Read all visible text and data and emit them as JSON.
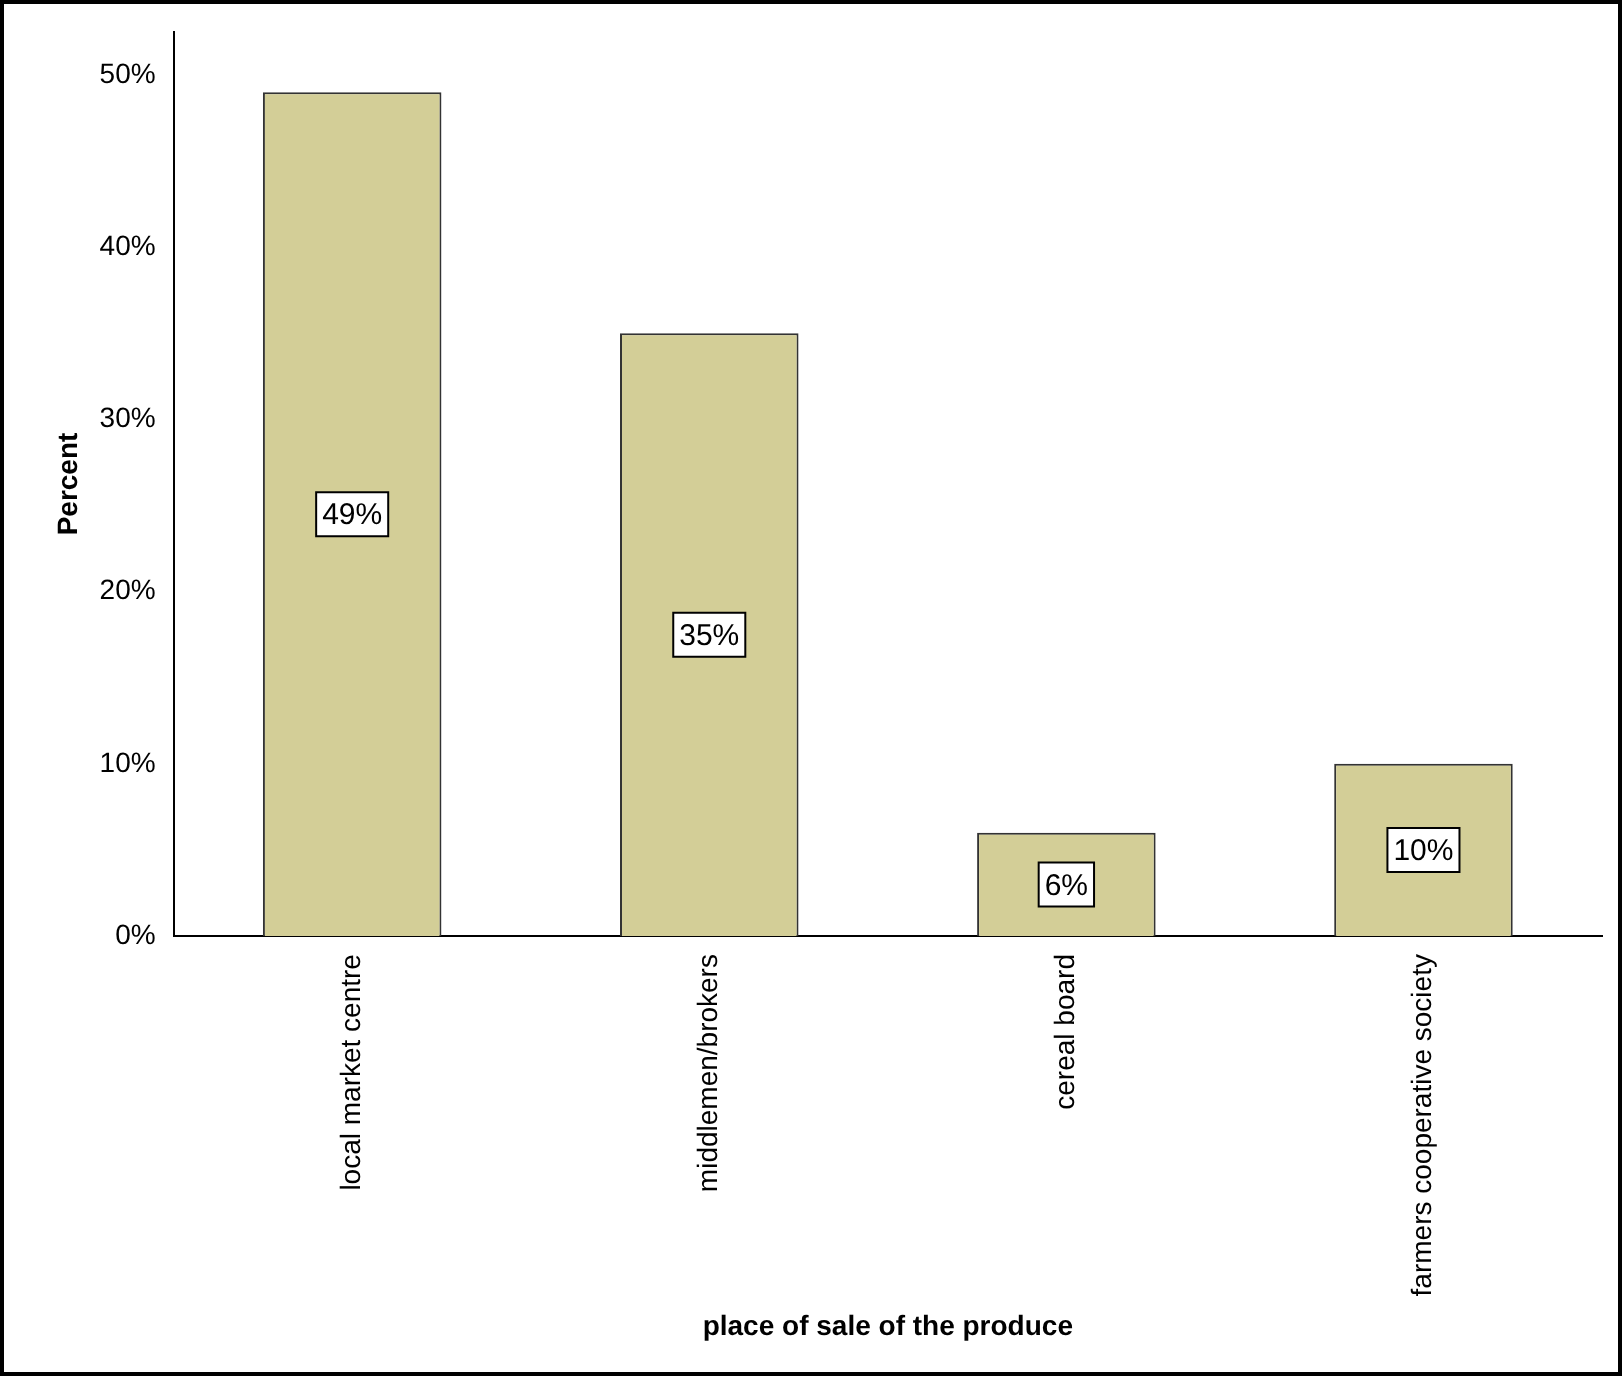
{
  "chart_data": {
    "type": "bar",
    "xlabel": "place of sale of the produce",
    "ylabel": "Percent",
    "categories": [
      "local market centre",
      "middlemen/brokers",
      "cereal board",
      "farmers cooperative society"
    ],
    "values": [
      49,
      35,
      6,
      10
    ],
    "color": "#d3ce97",
    "value_labels": [
      "49%",
      "35%",
      "6%",
      "10%"
    ],
    "ylim": [
      0,
      52.5
    ],
    "yticks": [
      {
        "value": 0,
        "label": "0%"
      },
      {
        "value": 10,
        "label": "10%"
      },
      {
        "value": 20,
        "label": "20%"
      },
      {
        "value": 30,
        "label": "30%"
      },
      {
        "value": 40,
        "label": "40%"
      },
      {
        "value": 50,
        "label": "50%"
      }
    ],
    "grid": false
  }
}
